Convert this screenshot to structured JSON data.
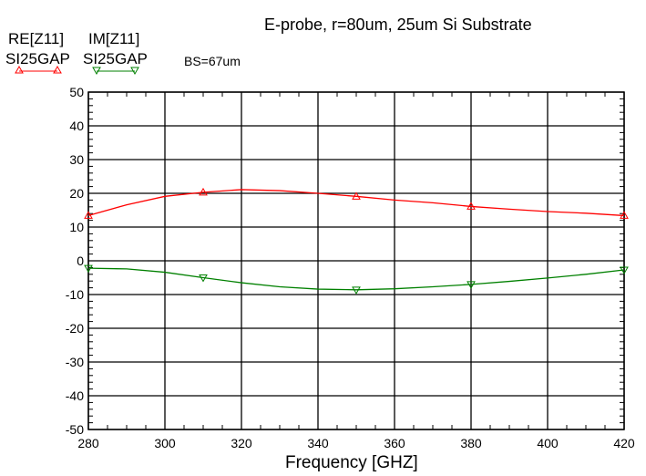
{
  "chart_data": {
    "type": "line",
    "title": "E-probe,  r=80um, 25um Si Substrate",
    "annotation": "BS=67um",
    "xlabel": "Frequency [GHZ]",
    "ylabel": "",
    "xlim": [
      280,
      420
    ],
    "ylim": [
      -50,
      50
    ],
    "xticks": [
      280,
      300,
      320,
      340,
      360,
      380,
      400,
      420
    ],
    "yticks": [
      50,
      40,
      30,
      20,
      10,
      0,
      -10,
      -20,
      -30,
      -40,
      -50
    ],
    "grid": true,
    "x": [
      280,
      290,
      300,
      310,
      320,
      330,
      340,
      350,
      360,
      370,
      380,
      390,
      400,
      410,
      420
    ],
    "marker_x": [
      280,
      310,
      350,
      380,
      420
    ],
    "series": [
      {
        "name": "RE[Z11]",
        "dataset": "SI25GAP",
        "color": "#ff0000",
        "marker": "triangle-up",
        "values": [
          13.4,
          16.6,
          19.1,
          20.3,
          21.1,
          20.8,
          20.0,
          19.1,
          18.0,
          17.2,
          16.1,
          15.3,
          14.6,
          14.1,
          13.4
        ]
      },
      {
        "name": "IM[Z11]",
        "dataset": "SI25GAP",
        "color": "#008000",
        "marker": "triangle-down",
        "values": [
          -2.2,
          -2.4,
          -3.4,
          -5.0,
          -6.5,
          -7.7,
          -8.4,
          -8.6,
          -8.3,
          -7.7,
          -7.0,
          -6.1,
          -5.1,
          -4.0,
          -2.7
        ]
      }
    ],
    "legend_position": "top-left"
  }
}
